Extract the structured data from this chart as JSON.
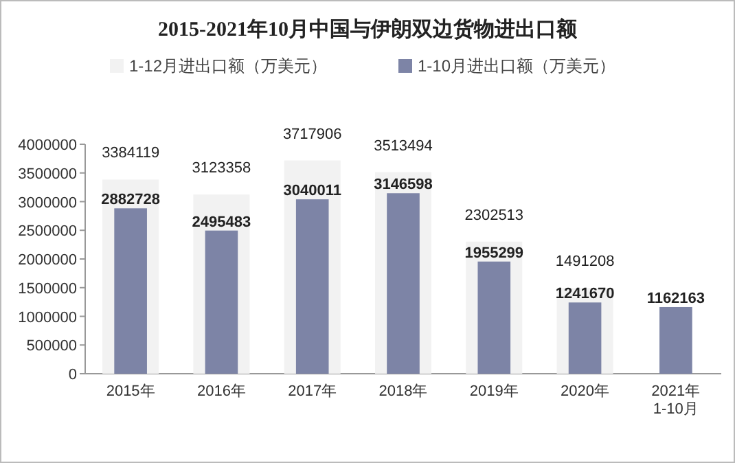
{
  "chart_data": {
    "type": "bar",
    "title": "2015-2021年10月中国与伊朗双边货物进出口额",
    "categories": [
      "2015年",
      "2016年",
      "2017年",
      "2018年",
      "2019年",
      "2020年",
      "2021年\n1-10月"
    ],
    "series": [
      {
        "name": "1-12月进出口额（万美元）",
        "color": "#f2f2f2",
        "values": [
          3384119,
          3123358,
          3717906,
          3513494,
          2302513,
          1491208,
          null
        ]
      },
      {
        "name": "1-10月进出口额（万美元）",
        "color": "#7d84a6",
        "values": [
          2882728,
          2495483,
          3040011,
          3146598,
          1955299,
          1241670,
          1162163
        ]
      }
    ],
    "ylim": [
      0,
      4000000
    ],
    "yticks": [
      0,
      500000,
      1000000,
      1500000,
      2000000,
      2500000,
      3000000,
      3500000,
      4000000
    ],
    "data_labels": true,
    "legend": "top",
    "grid": false
  }
}
